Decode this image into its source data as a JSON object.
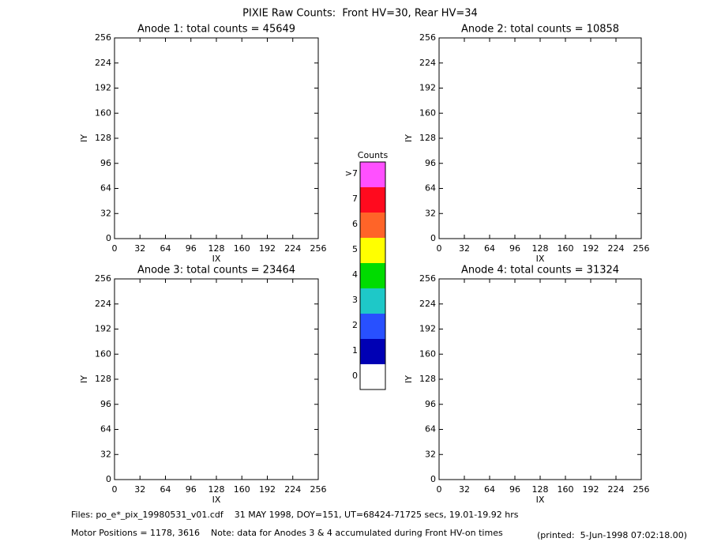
{
  "title": "PIXIE Raw Counts:  Front HV=30, Rear HV=34",
  "chart_data": [
    {
      "type": "heatmap",
      "title": "Anode 1: total counts = 45649",
      "xlabel": "IX",
      "ylabel": "IY",
      "xlim": [
        0,
        256
      ],
      "ylim": [
        0,
        256
      ],
      "xticks": [
        0,
        32,
        64,
        96,
        128,
        160,
        192,
        224,
        256
      ],
      "yticks": [
        0,
        32,
        64,
        96,
        128,
        160,
        192,
        224,
        256
      ]
    },
    {
      "type": "heatmap",
      "title": "Anode 2: total counts = 10858",
      "xlabel": "IX",
      "ylabel": "IY",
      "xlim": [
        0,
        256
      ],
      "ylim": [
        0,
        256
      ],
      "xticks": [
        0,
        32,
        64,
        96,
        128,
        160,
        192,
        224,
        256
      ],
      "yticks": [
        0,
        32,
        64,
        96,
        128,
        160,
        192,
        224,
        256
      ]
    },
    {
      "type": "heatmap",
      "title": "Anode 3: total counts = 23464",
      "xlabel": "IX",
      "ylabel": "IY",
      "xlim": [
        0,
        256
      ],
      "ylim": [
        0,
        256
      ],
      "xticks": [
        0,
        32,
        64,
        96,
        128,
        160,
        192,
        224,
        256
      ],
      "yticks": [
        0,
        32,
        64,
        96,
        128,
        160,
        192,
        224,
        256
      ]
    },
    {
      "type": "heatmap",
      "title": "Anode 4: total counts = 31324",
      "xlabel": "IX",
      "ylabel": "IY",
      "xlim": [
        0,
        256
      ],
      "ylim": [
        0,
        256
      ],
      "xticks": [
        0,
        32,
        64,
        96,
        128,
        160,
        192,
        224,
        256
      ],
      "yticks": [
        0,
        32,
        64,
        96,
        128,
        160,
        192,
        224,
        256
      ]
    }
  ],
  "colorbar": {
    "title": "Counts",
    "labels": [
      "0",
      "1",
      "2",
      "3",
      "4",
      "5",
      "6",
      "7",
      ">7"
    ],
    "colors": [
      "#ffffff",
      "#0000b4",
      "#2850ff",
      "#1ec8c8",
      "#00dc00",
      "#ffff00",
      "#ff6428",
      "#ff0a1e",
      "#ff50ff"
    ]
  },
  "footer": {
    "files": "Files: po_e*_pix_19980531_v01.cdf    31 MAY 1998, DOY=151, UT=68424-71725 secs, 19.01-19.92 hrs",
    "motor": "Motor Positions = 1178, 3616    Note: data for Anodes 3 & 4 accumulated during Front HV-on times",
    "printed": "(printed:  5-Jun-1998 07:02:18.00)"
  }
}
